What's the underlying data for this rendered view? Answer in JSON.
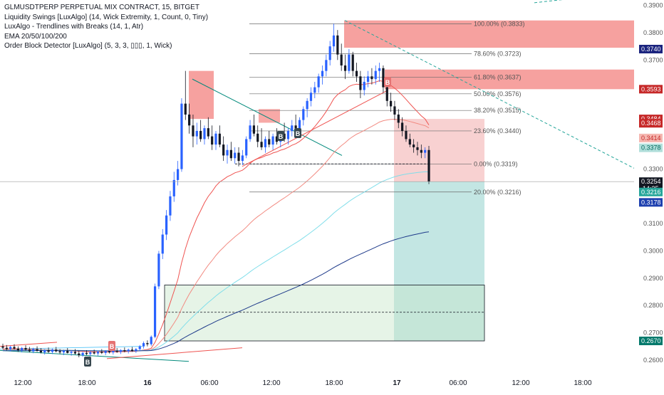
{
  "chart_data": {
    "type": "candlestick",
    "symbol_title": "GLMUSDTPERP PERPETUAL MIX CONTRACT, 15, BITGET",
    "indicators": [
      "Liquidity Swings [LuxAlgo] (14, Wick Extremity, 1, Count, 0, Tiny)",
      "LuxAlgo - Trendlines with Breaks (14, 1, Atr)",
      "EMA 20/50/100/200",
      "Order Block Detector [LuxAlgo] (5, 3, 3, ▯▯▯, 1, Wick)"
    ],
    "x_ticks": [
      "12:00",
      "18:00",
      "16",
      "06:00",
      "12:00",
      "18:00",
      "17",
      "06:00",
      "12:00",
      "18:00"
    ],
    "y_ticks": [
      "0.3900",
      "0.3800",
      "0.3700",
      "0.3300",
      "0.3100",
      "0.3000",
      "0.2900",
      "0.2800",
      "0.2700",
      "0.2600"
    ],
    "ylim": [
      0.255,
      0.392
    ],
    "price_labels": [
      {
        "value": 0.374,
        "text": "0.3740",
        "color": "#1a237e"
      },
      {
        "value": 0.3593,
        "text": "0.3593",
        "color": "#c62828"
      },
      {
        "value": 0.3484,
        "text": "0.3484",
        "color": "#c62828"
      },
      {
        "value": 0.3468,
        "text": "0.3468",
        "color": "#c62828"
      },
      {
        "value": 0.3414,
        "text": "0.3414",
        "color": "#f5b7b1",
        "text_color": "#c62828"
      },
      {
        "value": 0.3378,
        "text": "0.3378",
        "color": "#b2dfdb",
        "text_color": "#00695c"
      },
      {
        "value": 0.3254,
        "text": "0.3254",
        "color": "#131722",
        "sub": "14:25"
      },
      {
        "value": 0.3216,
        "text": "0.3216",
        "color": "#26a69a"
      },
      {
        "value": 0.3178,
        "text": "0.3178",
        "color": "#1e40af"
      },
      {
        "value": 0.267,
        "text": "0.2670",
        "color": "#00796b"
      }
    ],
    "fib_levels": [
      {
        "value": 0.3833,
        "text": "100.00% (0.3833)"
      },
      {
        "value": 0.3723,
        "text": "78.60% (0.3723)"
      },
      {
        "value": 0.3637,
        "text": "61.80% (0.3637)"
      },
      {
        "value": 0.3576,
        "text": "50.00% (0.3576)"
      },
      {
        "value": 0.3515,
        "text": "38.20% (0.3515)"
      },
      {
        "value": 0.344,
        "text": "23.60% (0.3440)"
      },
      {
        "value": 0.3319,
        "text": "0.00% (0.3319)"
      },
      {
        "value": 0.3216,
        "text": "20.00% (0.3216)"
      }
    ],
    "candles": [
      [
        0.265,
        0.266,
        0.264,
        0.2645
      ],
      [
        0.2645,
        0.2655,
        0.2635,
        0.264
      ],
      [
        0.264,
        0.2652,
        0.2632,
        0.2648
      ],
      [
        0.2648,
        0.2658,
        0.2638,
        0.2642
      ],
      [
        0.2642,
        0.265,
        0.263,
        0.2636
      ],
      [
        0.2636,
        0.2648,
        0.2628,
        0.2644
      ],
      [
        0.2644,
        0.2654,
        0.2634,
        0.2638
      ],
      [
        0.2638,
        0.2648,
        0.2628,
        0.2632
      ],
      [
        0.2632,
        0.2645,
        0.2625,
        0.264
      ],
      [
        0.264,
        0.265,
        0.263,
        0.2634
      ],
      [
        0.2634,
        0.2644,
        0.2624,
        0.2628
      ],
      [
        0.2628,
        0.264,
        0.262,
        0.2636
      ],
      [
        0.2636,
        0.2646,
        0.2626,
        0.263
      ],
      [
        0.263,
        0.2642,
        0.2622,
        0.2638
      ],
      [
        0.2638,
        0.2648,
        0.2628,
        0.2632
      ],
      [
        0.2632,
        0.264,
        0.2622,
        0.2628
      ],
      [
        0.2628,
        0.2638,
        0.2618,
        0.2634
      ],
      [
        0.2634,
        0.2644,
        0.2624,
        0.2626
      ],
      [
        0.2626,
        0.2636,
        0.2616,
        0.263
      ],
      [
        0.263,
        0.264,
        0.262,
        0.2624
      ],
      [
        0.2624,
        0.2634,
        0.261,
        0.2618
      ],
      [
        0.2618,
        0.263,
        0.2612,
        0.2626
      ],
      [
        0.2626,
        0.2636,
        0.2618,
        0.2622
      ],
      [
        0.2622,
        0.2632,
        0.2614,
        0.2628
      ],
      [
        0.2628,
        0.2638,
        0.262,
        0.2624
      ],
      [
        0.2624,
        0.2634,
        0.2616,
        0.263
      ],
      [
        0.263,
        0.264,
        0.2622,
        0.2626
      ],
      [
        0.2626,
        0.2636,
        0.2618,
        0.2632
      ],
      [
        0.2632,
        0.2644,
        0.2624,
        0.2628
      ],
      [
        0.2628,
        0.2638,
        0.262,
        0.2634
      ],
      [
        0.2634,
        0.2644,
        0.2626,
        0.263
      ],
      [
        0.263,
        0.264,
        0.2622,
        0.2636
      ],
      [
        0.2636,
        0.2646,
        0.2628,
        0.2632
      ],
      [
        0.2632,
        0.2642,
        0.2624,
        0.2638
      ],
      [
        0.2638,
        0.2648,
        0.263,
        0.2634
      ],
      [
        0.2634,
        0.2644,
        0.2626,
        0.264
      ],
      [
        0.264,
        0.2655,
        0.2632,
        0.265
      ],
      [
        0.265,
        0.2668,
        0.2642,
        0.2662
      ],
      [
        0.2662,
        0.2672,
        0.265,
        0.2658
      ],
      [
        0.2658,
        0.269,
        0.2652,
        0.2685
      ],
      [
        0.2685,
        0.288,
        0.268,
        0.287
      ],
      [
        0.287,
        0.3,
        0.286,
        0.299
      ],
      [
        0.299,
        0.308,
        0.297,
        0.306
      ],
      [
        0.306,
        0.315,
        0.304,
        0.313
      ],
      [
        0.313,
        0.322,
        0.311,
        0.32
      ],
      [
        0.32,
        0.329,
        0.318,
        0.326
      ],
      [
        0.326,
        0.333,
        0.324,
        0.33
      ],
      [
        0.33,
        0.356,
        0.329,
        0.354
      ],
      [
        0.354,
        0.366,
        0.348,
        0.35
      ],
      [
        0.35,
        0.354,
        0.343,
        0.346
      ],
      [
        0.346,
        0.35,
        0.338,
        0.342
      ],
      [
        0.342,
        0.347,
        0.339,
        0.344
      ],
      [
        0.344,
        0.348,
        0.34,
        0.341
      ],
      [
        0.341,
        0.346,
        0.339,
        0.345
      ],
      [
        0.345,
        0.349,
        0.341,
        0.342
      ],
      [
        0.342,
        0.346,
        0.337,
        0.339
      ],
      [
        0.339,
        0.344,
        0.337,
        0.343
      ],
      [
        0.343,
        0.346,
        0.338,
        0.339
      ],
      [
        0.339,
        0.342,
        0.333,
        0.335
      ],
      [
        0.335,
        0.339,
        0.332,
        0.337
      ],
      [
        0.337,
        0.34,
        0.333,
        0.334
      ],
      [
        0.334,
        0.338,
        0.332,
        0.336
      ],
      [
        0.336,
        0.338,
        0.331,
        0.333
      ],
      [
        0.333,
        0.337,
        0.3315,
        0.335
      ],
      [
        0.335,
        0.342,
        0.334,
        0.341
      ],
      [
        0.341,
        0.348,
        0.34,
        0.346
      ],
      [
        0.346,
        0.35,
        0.342,
        0.343
      ],
      [
        0.343,
        0.346,
        0.338,
        0.34
      ],
      [
        0.34,
        0.345,
        0.337,
        0.338
      ],
      [
        0.338,
        0.342,
        0.336,
        0.341
      ],
      [
        0.341,
        0.344,
        0.338,
        0.339
      ],
      [
        0.339,
        0.343,
        0.337,
        0.342
      ],
      [
        0.342,
        0.345,
        0.339,
        0.34
      ],
      [
        0.34,
        0.344,
        0.338,
        0.343
      ],
      [
        0.343,
        0.347,
        0.34,
        0.341
      ],
      [
        0.341,
        0.345,
        0.339,
        0.344
      ],
      [
        0.344,
        0.348,
        0.342,
        0.346
      ],
      [
        0.346,
        0.35,
        0.343,
        0.345
      ],
      [
        0.345,
        0.349,
        0.343,
        0.348
      ],
      [
        0.348,
        0.353,
        0.346,
        0.352
      ],
      [
        0.352,
        0.356,
        0.349,
        0.355
      ],
      [
        0.355,
        0.36,
        0.353,
        0.358
      ],
      [
        0.358,
        0.362,
        0.356,
        0.36
      ],
      [
        0.36,
        0.365,
        0.358,
        0.364
      ],
      [
        0.364,
        0.368,
        0.361,
        0.366
      ],
      [
        0.366,
        0.372,
        0.364,
        0.37
      ],
      [
        0.37,
        0.377,
        0.368,
        0.375
      ],
      [
        0.375,
        0.3833,
        0.373,
        0.379
      ],
      [
        0.379,
        0.381,
        0.37,
        0.372
      ],
      [
        0.372,
        0.376,
        0.366,
        0.368
      ],
      [
        0.368,
        0.372,
        0.363,
        0.366
      ],
      [
        0.366,
        0.374,
        0.365,
        0.372
      ],
      [
        0.372,
        0.373,
        0.364,
        0.366
      ],
      [
        0.366,
        0.369,
        0.362,
        0.364
      ],
      [
        0.364,
        0.366,
        0.356,
        0.359
      ],
      [
        0.359,
        0.364,
        0.357,
        0.362
      ],
      [
        0.362,
        0.366,
        0.36,
        0.364
      ],
      [
        0.364,
        0.367,
        0.361,
        0.363
      ],
      [
        0.363,
        0.368,
        0.361,
        0.366
      ],
      [
        0.366,
        0.369,
        0.362,
        0.367
      ],
      [
        0.367,
        0.368,
        0.358,
        0.36
      ],
      [
        0.36,
        0.362,
        0.353,
        0.355
      ],
      [
        0.355,
        0.358,
        0.351,
        0.353
      ],
      [
        0.353,
        0.355,
        0.348,
        0.35
      ],
      [
        0.35,
        0.352,
        0.345,
        0.347
      ],
      [
        0.347,
        0.349,
        0.342,
        0.344
      ],
      [
        0.344,
        0.346,
        0.34,
        0.341
      ],
      [
        0.341,
        0.343,
        0.338,
        0.339
      ],
      [
        0.339,
        0.341,
        0.336,
        0.338
      ],
      [
        0.338,
        0.34,
        0.335,
        0.337
      ],
      [
        0.337,
        0.339,
        0.334,
        0.336
      ],
      [
        0.336,
        0.338,
        0.334,
        0.337
      ],
      [
        0.337,
        0.3385,
        0.3245,
        0.3254
      ]
    ],
    "candle_colors": {
      "up": "#2962ff",
      "down": "#131722"
    },
    "ema_colors": [
      "#ef5350",
      "#f28b82",
      "#80deea",
      "#1e3a8a"
    ]
  }
}
